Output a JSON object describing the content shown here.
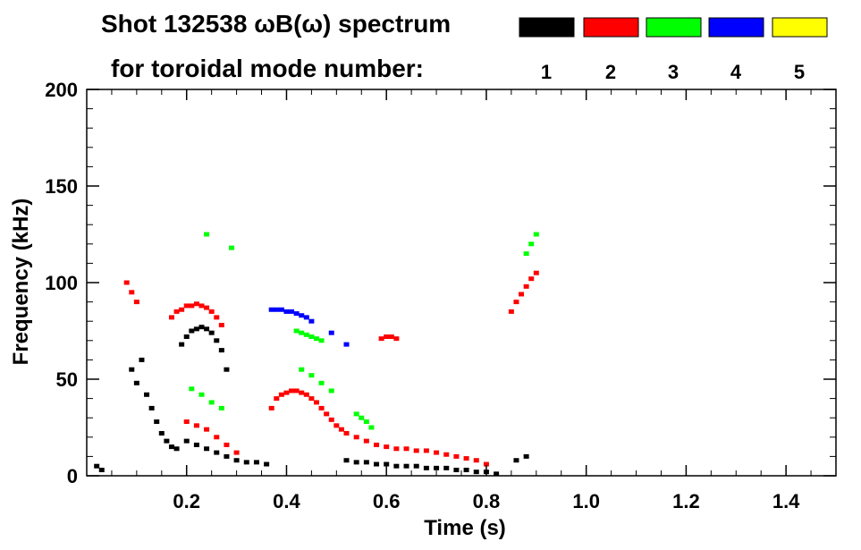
{
  "chart_data": {
    "type": "scatter",
    "title_line1": "Shot 132538 ωB(ω) spectrum",
    "title_line2": "for toroidal mode number:",
    "xlabel": "Time (s)",
    "ylabel": "Frequency (kHz)",
    "xlim": [
      0.0,
      1.5
    ],
    "ylim": [
      0,
      200
    ],
    "x_ticks": [
      "0.2",
      "0.4",
      "0.6",
      "0.8",
      "1.0",
      "1.2",
      "1.4"
    ],
    "x_tick_values": [
      0.2,
      0.4,
      0.6,
      0.8,
      1.0,
      1.2,
      1.4
    ],
    "y_ticks": [
      "0",
      "50",
      "100",
      "150",
      "200"
    ],
    "y_tick_values": [
      0,
      50,
      100,
      150,
      200
    ],
    "legend": [
      {
        "label": "1",
        "color": "#000000"
      },
      {
        "label": "2",
        "color": "#ff0000"
      },
      {
        "label": "3",
        "color": "#00ff00"
      },
      {
        "label": "4",
        "color": "#0000ff"
      },
      {
        "label": "5",
        "color": "#ffff00"
      }
    ],
    "series": [
      {
        "name": "n=1",
        "color": "#000000",
        "points": [
          [
            0.09,
            55
          ],
          [
            0.1,
            48
          ],
          [
            0.11,
            60
          ],
          [
            0.12,
            42
          ],
          [
            0.13,
            35
          ],
          [
            0.14,
            28
          ],
          [
            0.15,
            22
          ],
          [
            0.16,
            18
          ],
          [
            0.17,
            15
          ],
          [
            0.18,
            14
          ],
          [
            0.19,
            68
          ],
          [
            0.2,
            72
          ],
          [
            0.21,
            75
          ],
          [
            0.22,
            76
          ],
          [
            0.23,
            77
          ],
          [
            0.24,
            76
          ],
          [
            0.25,
            74
          ],
          [
            0.26,
            70
          ],
          [
            0.27,
            65
          ],
          [
            0.28,
            55
          ],
          [
            0.2,
            18
          ],
          [
            0.22,
            16
          ],
          [
            0.24,
            14
          ],
          [
            0.26,
            12
          ],
          [
            0.28,
            10
          ],
          [
            0.3,
            8
          ],
          [
            0.32,
            7
          ],
          [
            0.34,
            7
          ],
          [
            0.36,
            6
          ],
          [
            0.52,
            8
          ],
          [
            0.54,
            7
          ],
          [
            0.56,
            7
          ],
          [
            0.58,
            6
          ],
          [
            0.6,
            6
          ],
          [
            0.62,
            5
          ],
          [
            0.64,
            5
          ],
          [
            0.66,
            5
          ],
          [
            0.68,
            4
          ],
          [
            0.7,
            4
          ],
          [
            0.72,
            4
          ],
          [
            0.74,
            3
          ],
          [
            0.76,
            3
          ],
          [
            0.78,
            2
          ],
          [
            0.8,
            2
          ],
          [
            0.82,
            1
          ],
          [
            0.86,
            8
          ],
          [
            0.88,
            10
          ],
          [
            0.02,
            5
          ],
          [
            0.03,
            3
          ]
        ]
      },
      {
        "name": "n=2",
        "color": "#ff0000",
        "points": [
          [
            0.08,
            100
          ],
          [
            0.09,
            95
          ],
          [
            0.1,
            90
          ],
          [
            0.17,
            82
          ],
          [
            0.18,
            85
          ],
          [
            0.19,
            86
          ],
          [
            0.2,
            88
          ],
          [
            0.21,
            88
          ],
          [
            0.22,
            89
          ],
          [
            0.23,
            88
          ],
          [
            0.24,
            87
          ],
          [
            0.25,
            85
          ],
          [
            0.26,
            82
          ],
          [
            0.27,
            78
          ],
          [
            0.2,
            28
          ],
          [
            0.22,
            26
          ],
          [
            0.24,
            24
          ],
          [
            0.26,
            20
          ],
          [
            0.28,
            16
          ],
          [
            0.3,
            12
          ],
          [
            0.37,
            35
          ],
          [
            0.38,
            40
          ],
          [
            0.39,
            42
          ],
          [
            0.4,
            43
          ],
          [
            0.41,
            44
          ],
          [
            0.42,
            44
          ],
          [
            0.43,
            43
          ],
          [
            0.44,
            42
          ],
          [
            0.45,
            40
          ],
          [
            0.46,
            38
          ],
          [
            0.47,
            35
          ],
          [
            0.48,
            32
          ],
          [
            0.49,
            29
          ],
          [
            0.5,
            26
          ],
          [
            0.51,
            24
          ],
          [
            0.52,
            22
          ],
          [
            0.54,
            20
          ],
          [
            0.56,
            18
          ],
          [
            0.58,
            16
          ],
          [
            0.6,
            15
          ],
          [
            0.62,
            14
          ],
          [
            0.64,
            14
          ],
          [
            0.66,
            13
          ],
          [
            0.68,
            13
          ],
          [
            0.7,
            12
          ],
          [
            0.72,
            11
          ],
          [
            0.74,
            10
          ],
          [
            0.76,
            9
          ],
          [
            0.78,
            8
          ],
          [
            0.8,
            6
          ],
          [
            0.59,
            71
          ],
          [
            0.6,
            72
          ],
          [
            0.61,
            72
          ],
          [
            0.62,
            71
          ],
          [
            0.85,
            85
          ],
          [
            0.86,
            90
          ],
          [
            0.87,
            94
          ],
          [
            0.88,
            98
          ],
          [
            0.89,
            102
          ],
          [
            0.9,
            105
          ]
        ]
      },
      {
        "name": "n=3",
        "color": "#00ff00",
        "points": [
          [
            0.21,
            45
          ],
          [
            0.23,
            42
          ],
          [
            0.25,
            38
          ],
          [
            0.27,
            35
          ],
          [
            0.42,
            75
          ],
          [
            0.43,
            74
          ],
          [
            0.44,
            73
          ],
          [
            0.45,
            72
          ],
          [
            0.46,
            71
          ],
          [
            0.47,
            70
          ],
          [
            0.43,
            55
          ],
          [
            0.45,
            52
          ],
          [
            0.47,
            48
          ],
          [
            0.49,
            44
          ],
          [
            0.54,
            32
          ],
          [
            0.55,
            30
          ],
          [
            0.56,
            28
          ],
          [
            0.57,
            25
          ],
          [
            0.88,
            115
          ],
          [
            0.89,
            120
          ],
          [
            0.9,
            125
          ],
          [
            0.24,
            125
          ],
          [
            0.29,
            118
          ]
        ]
      },
      {
        "name": "n=4",
        "color": "#0000ff",
        "points": [
          [
            0.37,
            86
          ],
          [
            0.38,
            86
          ],
          [
            0.39,
            86
          ],
          [
            0.4,
            85
          ],
          [
            0.41,
            85
          ],
          [
            0.42,
            84
          ],
          [
            0.43,
            83
          ],
          [
            0.44,
            82
          ],
          [
            0.45,
            80
          ],
          [
            0.49,
            74
          ],
          [
            0.52,
            68
          ]
        ]
      },
      {
        "name": "n=5",
        "color": "#ffff00",
        "points": []
      }
    ]
  }
}
